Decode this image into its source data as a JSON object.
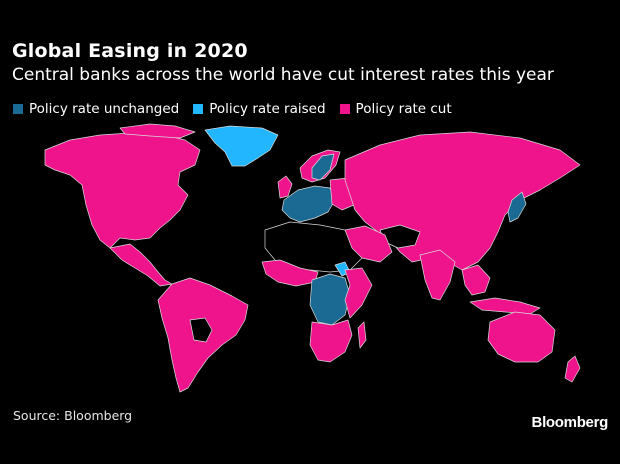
{
  "header": {
    "title": "Global Easing in 2020",
    "subtitle": "Central banks across the world have cut interest rates this year"
  },
  "legend": [
    {
      "label": "Policy rate unchanged",
      "color": "#1b6a94"
    },
    {
      "label": "Policy rate raised",
      "color": "#21b6ff"
    },
    {
      "label": "Policy rate cut",
      "color": "#f0148c"
    }
  ],
  "colors": {
    "background": "#000000",
    "no_data": "#000000",
    "border": "#d9d9d9"
  },
  "footer": {
    "source": "Source: Bloomberg",
    "brand": "Bloomberg"
  }
}
